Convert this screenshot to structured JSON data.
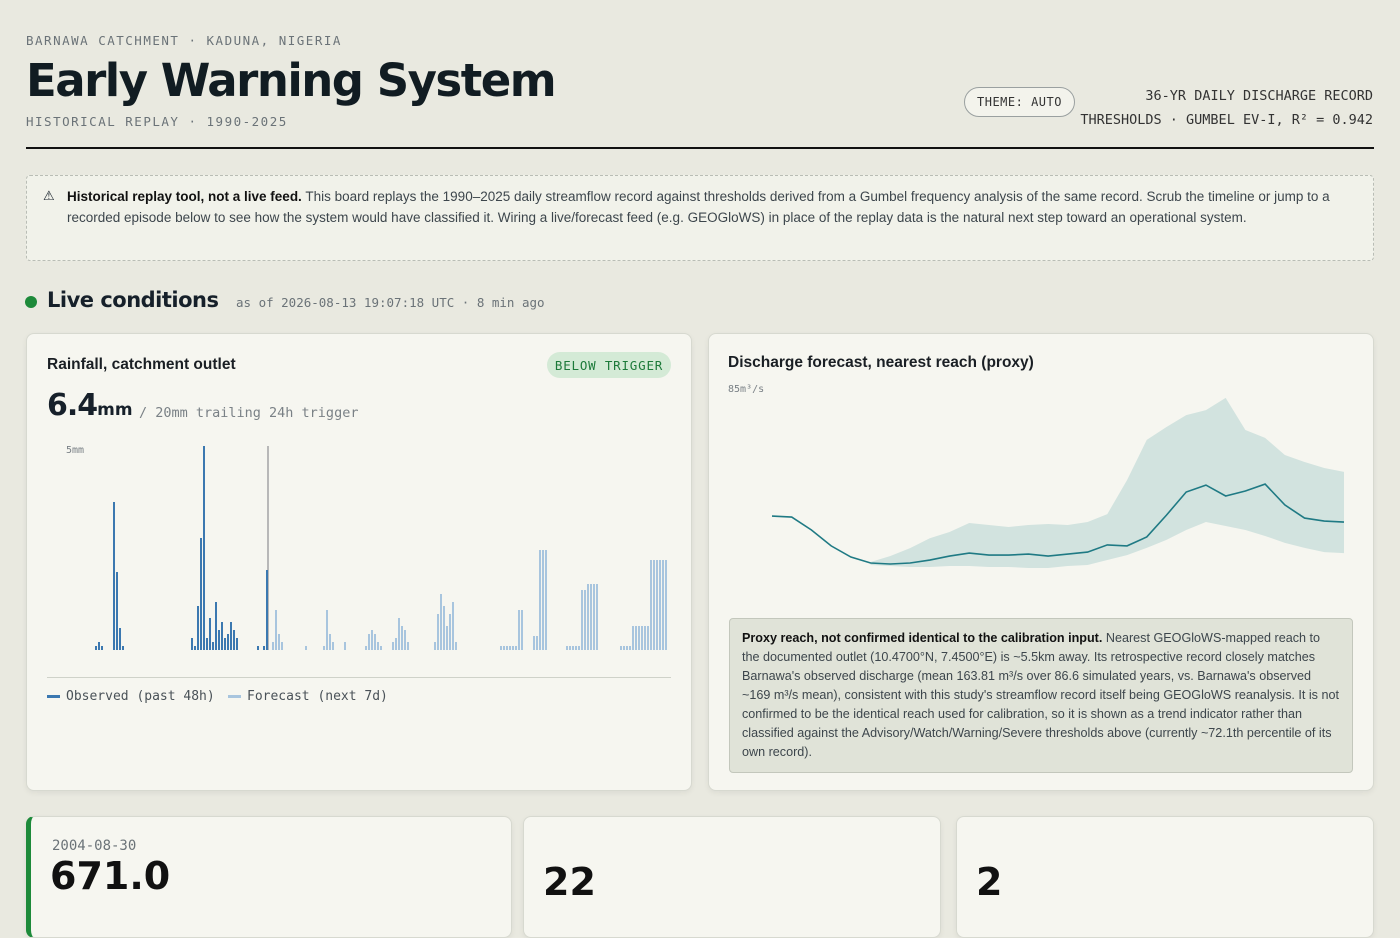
{
  "header": {
    "eyebrow": "BARNAWA CATCHMENT · KADUNA, NIGERIA",
    "title": "Early Warning System",
    "subtitle": "HISTORICAL REPLAY · 1990-2025",
    "theme_button": "THEME: AUTO",
    "meta": [
      "36-YR DAILY DISCHARGE RECORD",
      "THRESHOLDS · GUMBEL EV-I, R² = 0.942"
    ]
  },
  "notice": {
    "lead": "Historical replay tool, not a live feed.",
    "body": "This board replays the 1990–2025 daily streamflow record against thresholds derived from a Gumbel frequency analysis of the same record. Scrub the timeline or jump to a recorded episode below to see how the system would have classified it. Wiring a live/forecast feed (e.g. GEOGloWS) in place of the replay data is the natural next step toward an operational system."
  },
  "live": {
    "title": "Live conditions",
    "timestamp": "as of 2026-08-13 19:07:18 UTC · 8 min ago"
  },
  "rainfall": {
    "title": "Rainfall, catchment outlet",
    "badge": "BELOW TRIGGER",
    "value": 6.4,
    "unit": "mm",
    "trigger_text": "/ 20mm trailing 24h trigger"
  },
  "discharge": {
    "title": "Discharge forecast, nearest reach (proxy)",
    "note_lead": "Proxy reach, not confirmed identical to the calibration input.",
    "note_body": "Nearest GEOGloWS-mapped reach to the documented outlet (10.4700°N, 7.4500°E) is ~5.5km away. Its retrospective record closely matches Barnawa's observed discharge (mean 163.81 m³/s over 86.6 simulated years, vs. Barnawa's observed ~169 m³/s mean), consistent with this study's streamflow record itself being GEOGloWS reanalysis. It is not confirmed to be the identical reach used for calibration, so it is shown as a trend indicator rather than classified against the Advisory/Watch/Warning/Severe thresholds above (currently ~72.1th percentile of its own record)."
  },
  "cards": [
    {
      "date": "2004-08-30",
      "value": "671.0"
    },
    {
      "value": "22"
    },
    {
      "value": "2"
    }
  ],
  "chart_data": [
    {
      "type": "bar",
      "ylim": [
        0,
        5
      ],
      "yticks": [
        {
          "value": 5,
          "label": "5mm"
        }
      ],
      "series": [
        {
          "name": "Observed (past 48h)",
          "color": "#3b78b0",
          "values": [
            0,
            0,
            0,
            0,
            0,
            0,
            0,
            0,
            0,
            0,
            0,
            0,
            0,
            0,
            0,
            0,
            0.1,
            0.2,
            0.1,
            0,
            0,
            0,
            3.7,
            1.95,
            0.55,
            0.1,
            0,
            0,
            0,
            0,
            0,
            0,
            0,
            0,
            0,
            0,
            0,
            0,
            0,
            0,
            0,
            0,
            0,
            0,
            0,
            0,
            0,
            0,
            0.3,
            0.1,
            1.1,
            2.8,
            5.1,
            0.3,
            0.8,
            0.2,
            1.2,
            0.5,
            0.7,
            0.3,
            0.4,
            0.7,
            0.5,
            0.3,
            0,
            0,
            0,
            0,
            0,
            0,
            0.1,
            0,
            0.1,
            2.0
          ]
        },
        {
          "name": "Forecast (next 7d)",
          "color": "#a8c5de",
          "values": [
            0,
            0.2,
            1.0,
            0.4,
            0.2,
            0,
            0,
            0,
            0,
            0,
            0,
            0,
            0.1,
            0,
            0,
            0,
            0,
            0,
            0.1,
            1.0,
            0.4,
            0.2,
            0,
            0,
            0,
            0.2,
            0,
            0,
            0,
            0,
            0,
            0,
            0.1,
            0.4,
            0.5,
            0.4,
            0.2,
            0.1,
            0,
            0,
            0,
            0.2,
            0.3,
            0.8,
            0.6,
            0.5,
            0.2,
            0,
            0,
            0,
            0,
            0,
            0,
            0,
            0,
            0.2,
            0.9,
            1.4,
            1.1,
            0.6,
            0.9,
            1.2,
            0.2,
            0,
            0,
            0,
            0,
            0,
            0,
            0,
            0,
            0,
            0,
            0,
            0,
            0,
            0,
            0.1,
            0.1,
            0.1,
            0.1,
            0.1,
            0.1,
            1.0,
            1.0,
            0,
            0,
            0,
            0.35,
            0.35,
            2.5,
            2.5,
            2.5,
            0,
            0,
            0,
            0,
            0,
            0,
            0.1,
            0.1,
            0.1,
            0.1,
            0.1,
            1.5,
            1.5,
            1.65,
            1.65,
            1.65,
            1.65,
            0,
            0,
            0,
            0,
            0,
            0,
            0,
            0.1,
            0.1,
            0.1,
            0.1,
            0.6,
            0.6,
            0.6,
            0.6,
            0.6,
            0.6,
            2.25,
            2.25,
            2.25,
            2.25,
            2.25,
            2.25,
            0
          ]
        }
      ]
    },
    {
      "type": "line",
      "ylim": [
        0,
        85
      ],
      "yticks": [
        {
          "value": 85,
          "label": "85m³/s"
        }
      ],
      "series": [
        {
          "color": "#1f7a84",
          "values": [
            33.8,
            33.4,
            28.2,
            21.8,
            17.3,
            14.9,
            14.5,
            14.9,
            16.1,
            17.7,
            18.9,
            18.1,
            18.1,
            18.5,
            17.7,
            18.5,
            19.3,
            22.2,
            21.8,
            25.4,
            34.2,
            43.5,
            46.3,
            41.9,
            43.9,
            46.7,
            38.3,
            33.0,
            31.8,
            31.4
          ]
        }
      ],
      "band": {
        "color": "#d2e3df",
        "upper": [
          null,
          null,
          null,
          null,
          null,
          15.3,
          17.7,
          20.9,
          24.9,
          27.4,
          31.0,
          30.2,
          29.4,
          30.2,
          30.6,
          30.2,
          31.4,
          34.6,
          48.3,
          64.5,
          69.7,
          74.5,
          76.5,
          81.4,
          68.5,
          65.3,
          58.4,
          55.6,
          53.2,
          51.6
        ],
        "lower": [
          null,
          null,
          null,
          null,
          null,
          14.1,
          13.7,
          13.3,
          13.3,
          13.7,
          13.7,
          13.3,
          13.3,
          12.9,
          12.9,
          13.7,
          14.1,
          16.1,
          18.1,
          21.0,
          24.2,
          28.2,
          31.4,
          29.8,
          28.2,
          25.8,
          23.0,
          21.0,
          19.3,
          18.9
        ]
      }
    }
  ]
}
